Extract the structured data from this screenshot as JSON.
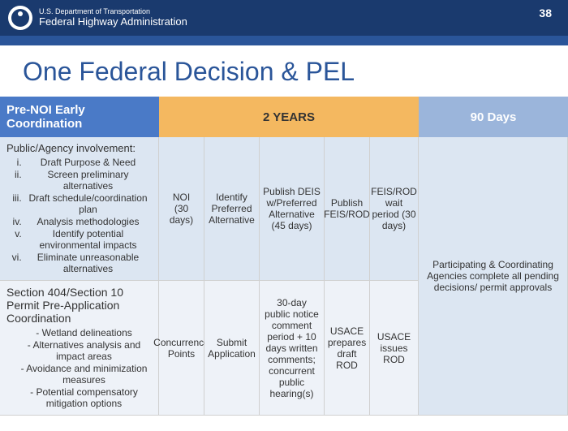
{
  "page_number": "38",
  "dept_line1": "U.S. Department of Transportation",
  "dept_line2": "Federal Highway Administration",
  "title": "One Federal Decision & PEL",
  "headers": {
    "pre": "Pre-NOI Early Coordination",
    "years": "2 YEARS",
    "days90": "90 Days"
  },
  "row1": {
    "left_head": "Public/Agency involvement:",
    "items": [
      "Draft Purpose & Need",
      "Screen preliminary alternatives",
      "Draft schedule/coordination plan",
      "Analysis methodologies",
      "Identify potential environmental impacts",
      "Eliminate unreasonable alternatives"
    ],
    "c1": "NOI\n(30 days)",
    "c2": "Identify Preferred Alternative",
    "c3": "Publish DEIS w/Preferred Alternative\n(45 days)",
    "c4": "Publish FEIS/ROD",
    "c5": "FEIS/ROD wait period (30 days)"
  },
  "row2": {
    "left_head": "Section 404/Section 10 Permit Pre-Application Coordination",
    "items": [
      "Wetland delineations",
      "Alternatives analysis and impact areas",
      "Avoidance and minimization measures",
      "Potential compensatory mitigation options"
    ],
    "c1": "Concurrence Points",
    "c2": "Submit Application",
    "c3": "30-day public notice comment period + 10 days written comments; concurrent public hearing(s)",
    "c4": "USACE prepares draft ROD",
    "c5": "USACE issues ROD"
  },
  "right": "Participating & Coordinating Agencies complete all pending decisions/ permit approvals"
}
